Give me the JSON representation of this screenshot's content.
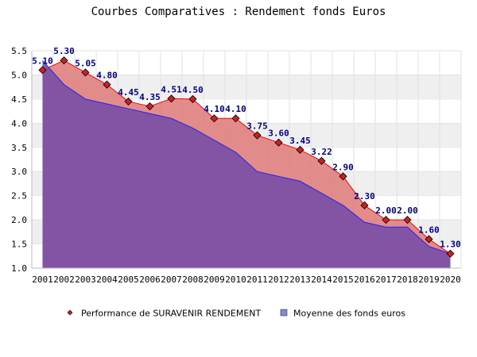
{
  "chart_data": {
    "type": "area",
    "title": "Courbes Comparatives : Rendement fonds Euros",
    "xlabel": "",
    "ylabel": "",
    "ylim": [
      1.0,
      5.5
    ],
    "yticks": [
      "1.0",
      "1.5",
      "2.0",
      "2.5",
      "3.0",
      "3.5",
      "4.0",
      "4.5",
      "5.0",
      "5.5"
    ],
    "grid": true,
    "legend_position": "bottom",
    "categories": [
      "2001",
      "2002",
      "2003",
      "2004",
      "2005",
      "2006",
      "2007",
      "2008",
      "2009",
      "2010",
      "2011",
      "2012",
      "2013",
      "2014",
      "2015",
      "2016",
      "2017",
      "2018",
      "2019",
      "2020"
    ],
    "series": [
      {
        "name": "Performance de SURAVENIR RENDEMENT",
        "values": [
          5.1,
          5.3,
          5.05,
          4.8,
          4.45,
          4.35,
          4.51,
          4.5,
          4.1,
          4.1,
          3.75,
          3.6,
          3.45,
          3.22,
          2.9,
          2.3,
          2.0,
          2.0,
          1.6,
          1.3
        ],
        "labels": [
          "5.10",
          "5.30",
          "5.05",
          "4.80",
          "4.45",
          "4.35",
          "4.51",
          "4.50",
          "4.10",
          "4.10",
          "3.75",
          "3.60",
          "3.45",
          "3.22",
          "2.90",
          "2.30",
          "2.00",
          "2.00",
          "1.60",
          "1.30"
        ],
        "fill_color": "#e08080",
        "line_color": "#ff0000",
        "marker_color": "#cc2020"
      },
      {
        "name": "Moyenne des fonds euros",
        "values": [
          5.3,
          4.8,
          4.5,
          4.4,
          4.3,
          4.2,
          4.1,
          3.9,
          3.65,
          3.4,
          3.0,
          2.9,
          2.8,
          2.55,
          2.3,
          1.95,
          1.85,
          1.85,
          1.45,
          1.3
        ],
        "fill_color": "#7b4fa5",
        "line_color": "#2020ff"
      }
    ]
  }
}
